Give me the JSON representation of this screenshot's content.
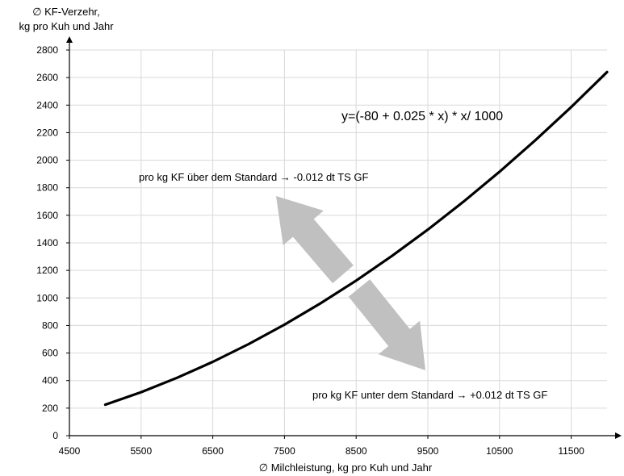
{
  "chart_data": {
    "type": "line",
    "ylabel_lines": [
      "∅ KF-Verzehr,",
      "kg pro Kuh und Jahr"
    ],
    "xlabel": "∅ Milchleistung, kg pro Kuh und Jahr",
    "x_ticks": [
      4500,
      5500,
      6500,
      7500,
      8500,
      9500,
      10500,
      11500
    ],
    "y_ticks": [
      0,
      200,
      400,
      600,
      800,
      1000,
      1200,
      1400,
      1600,
      1800,
      2000,
      2200,
      2400,
      2600,
      2800
    ],
    "xlim": [
      4500,
      12000
    ],
    "ylim": [
      0,
      2800
    ],
    "grid": true,
    "series": [
      {
        "color": "#000000",
        "x": [
          5000,
          5500,
          6000,
          6500,
          7000,
          7500,
          8000,
          8500,
          9000,
          9500,
          10000,
          10500,
          11000,
          11500,
          12000
        ],
        "y": [
          225,
          316,
          420,
          536,
          665,
          806,
          960,
          1126,
          1305,
          1496,
          1700,
          1916,
          2145,
          2386,
          2640
        ]
      }
    ],
    "annotations": {
      "formula": "y=(-80 + 0.025 * x) * x/ 1000",
      "above": "pro kg KF über dem Standard → -0.012 dt TS GF",
      "below": "pro kg KF unter dem Standard → +0.012 dt TS GF"
    },
    "arrow_color": "#c0c0c0",
    "grid_color": "#d9d9d9"
  }
}
